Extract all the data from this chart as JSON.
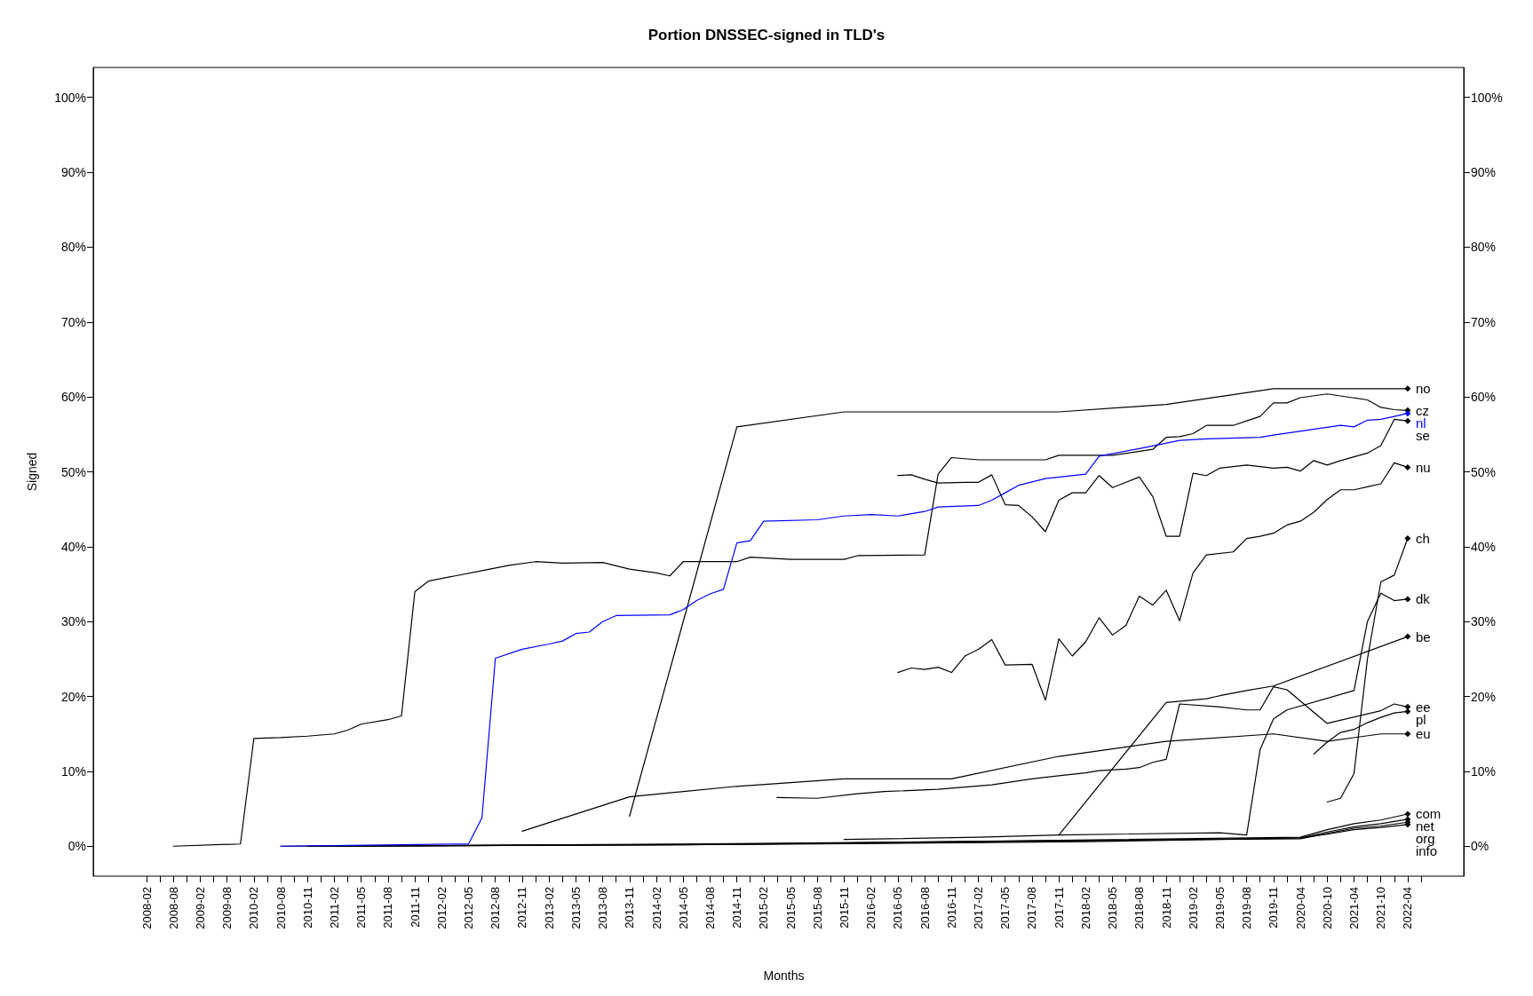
{
  "chart_data": {
    "type": "line",
    "title": "Portion DNSSEC-signed in TLD's",
    "xlabel": "Months",
    "ylabel": "Signed",
    "categories": [
      "2008-02",
      null,
      "2008-08",
      null,
      "2009-02",
      null,
      "2009-08",
      null,
      "2010-02",
      null,
      "2010-08",
      null,
      "2010-11",
      null,
      "2011-02",
      null,
      "2011-05",
      null,
      "2011-08",
      null,
      "2011-11",
      null,
      "2012-02",
      null,
      "2012-05",
      null,
      "2012-08",
      null,
      "2012-11",
      null,
      "2013-02",
      null,
      "2013-05",
      null,
      "2013-08",
      null,
      "2013-11",
      null,
      "2014-02",
      null,
      "2014-05",
      null,
      "2014-08",
      null,
      "2014-11",
      null,
      "2015-02",
      null,
      "2015-05",
      null,
      "2015-08",
      null,
      "2015-11",
      null,
      "2016-02",
      null,
      "2016-05",
      null,
      "2016-08",
      null,
      "2016-11",
      null,
      "2017-02",
      null,
      "2017-05",
      null,
      "2017-08",
      null,
      "2017-11",
      null,
      "2018-02",
      null,
      "2018-05",
      null,
      "2018-08",
      null,
      "2018-11",
      null,
      "2019-02",
      null,
      "2019-05",
      null,
      "2019-08",
      null,
      "2019-11",
      null,
      "2020-04",
      null,
      "2020-10",
      null,
      "2021-04",
      null,
      "2021-10",
      null,
      "2022-04",
      null
    ],
    "ylim": [
      -4,
      104
    ],
    "yticks": [
      {
        "value": 0,
        "label": "0%"
      },
      {
        "value": 10,
        "label": "10%"
      },
      {
        "value": 20,
        "label": "20%"
      },
      {
        "value": 30,
        "label": "30%"
      },
      {
        "value": 40,
        "label": "40%"
      },
      {
        "value": 50,
        "label": "50%"
      },
      {
        "value": 60,
        "label": "60%"
      },
      {
        "value": 70,
        "label": "70%"
      },
      {
        "value": 80,
        "label": "80%"
      },
      {
        "value": 90,
        "label": "90%"
      },
      {
        "value": 100,
        "label": "100%"
      }
    ],
    "y2lim": [
      -4,
      104
    ],
    "y2ticks": [
      {
        "value": 0,
        "label": "0%"
      },
      {
        "value": 10,
        "label": "10%"
      },
      {
        "value": 20,
        "label": "20%"
      },
      {
        "value": 30,
        "label": "30%"
      },
      {
        "value": 40,
        "label": "40%"
      },
      {
        "value": 50,
        "label": "50%"
      },
      {
        "value": 60,
        "label": "60%"
      },
      {
        "value": 70,
        "label": "70%"
      },
      {
        "value": 80,
        "label": "80%"
      },
      {
        "value": 90,
        "label": "90%"
      },
      {
        "value": 100,
        "label": "100%"
      }
    ],
    "grid": false,
    "legend": false,
    "line_style": "solid",
    "series": [
      {
        "name": "no",
        "color": "#000000",
        "values": [
          null,
          null,
          null,
          null,
          null,
          null,
          null,
          null,
          null,
          null,
          null,
          null,
          null,
          null,
          null,
          null,
          null,
          null,
          null,
          null,
          null,
          null,
          null,
          null,
          null,
          null,
          null,
          null,
          null,
          null,
          null,
          null,
          null,
          null,
          null,
          null,
          4.0,
          null,
          null,
          null,
          null,
          null,
          null,
          null,
          56.0,
          null,
          null,
          null,
          null,
          null,
          null,
          null,
          58.0,
          null,
          null,
          null,
          null,
          null,
          null,
          null,
          null,
          null,
          null,
          null,
          null,
          null,
          null,
          null,
          58.0,
          null,
          null,
          null,
          null,
          null,
          null,
          null,
          59.0,
          null,
          null,
          null,
          null,
          null,
          null,
          null,
          61.1,
          null,
          null,
          null,
          null,
          null,
          null,
          null,
          61.1,
          null,
          61.1,
          null
        ]
      },
      {
        "name": "cz",
        "color": "#000000",
        "values": [
          null,
          null,
          0,
          null,
          null,
          null,
          null,
          0.3,
          14.4,
          null,
          14.5,
          null,
          14.7,
          null,
          15.0,
          15.5,
          16.3,
          null,
          16.9,
          17.4,
          34.0,
          35.4,
          null,
          36.1,
          null,
          36.8,
          null,
          37.5,
          null,
          38.0,
          null,
          37.8,
          null,
          null,
          37.9,
          null,
          37.0,
          null,
          36.5,
          36.1,
          38.0,
          null,
          null,
          null,
          38.0,
          38.6,
          null,
          null,
          38.3,
          null,
          null,
          null,
          38.3,
          38.8,
          null,
          null,
          null,
          null,
          38.9,
          49.7,
          51.9,
          null,
          51.6,
          null,
          null,
          null,
          null,
          51.6,
          52.2,
          null,
          null,
          null,
          52.2,
          null,
          null,
          53.0,
          54.6,
          54.7,
          55.1,
          56.2,
          null,
          56.2,
          56.8,
          57.4,
          59.2,
          59.2,
          59.9,
          null,
          60.4,
          null,
          null,
          59.6,
          58.6,
          58.3,
          58.2,
          null
        ]
      },
      {
        "name": "nl",
        "color": "#0000ff",
        "values": [
          null,
          null,
          null,
          null,
          null,
          null,
          null,
          null,
          null,
          null,
          0,
          null,
          null,
          null,
          null,
          null,
          null,
          null,
          null,
          null,
          null,
          null,
          null,
          null,
          0.3,
          3.8,
          25.1,
          null,
          26.3,
          null,
          27.0,
          27.4,
          28.4,
          28.6,
          30.0,
          30.8,
          null,
          null,
          null,
          30.9,
          31.6,
          32.8,
          33.7,
          34.3,
          40.5,
          40.8,
          43.4,
          null,
          null,
          null,
          43.6,
          null,
          44.1,
          null,
          44.3,
          null,
          44.1,
          null,
          44.7,
          45.3,
          null,
          null,
          45.5,
          46.2,
          47.2,
          48.2,
          null,
          49.1,
          null,
          null,
          49.7,
          52.1,
          null,
          null,
          53.1,
          null,
          null,
          54.2,
          null,
          54.4,
          null,
          null,
          null,
          54.6,
          54.9,
          null,
          null,
          null,
          null,
          56.2,
          56.0,
          56.9,
          57.0,
          57.4,
          57.8,
          null
        ]
      },
      {
        "name": "se",
        "color": "#000000",
        "values": [
          null,
          null,
          null,
          null,
          null,
          null,
          null,
          null,
          null,
          null,
          null,
          null,
          null,
          null,
          null,
          null,
          null,
          null,
          null,
          null,
          null,
          null,
          null,
          null,
          null,
          null,
          null,
          null,
          null,
          null,
          null,
          null,
          null,
          null,
          null,
          null,
          null,
          null,
          null,
          null,
          null,
          null,
          null,
          null,
          null,
          null,
          null,
          null,
          null,
          null,
          null,
          null,
          null,
          null,
          null,
          null,
          49.5,
          49.6,
          49.0,
          48.5,
          null,
          48.6,
          48.6,
          49.6,
          45.6,
          45.5,
          44.0,
          42.0,
          46.2,
          47.2,
          47.2,
          49.5,
          47.9,
          null,
          49.3,
          46.7,
          41.4,
          41.4,
          49.8,
          49.5,
          50.5,
          null,
          50.9,
          null,
          50.5,
          50.6,
          50.1,
          51.5,
          50.9,
          51.5,
          52.0,
          52.5,
          53.5,
          57.0,
          56.8,
          null
        ]
      },
      {
        "name": "nu",
        "color": "#000000",
        "values": [
          null,
          null,
          null,
          null,
          null,
          null,
          null,
          null,
          null,
          null,
          null,
          null,
          null,
          null,
          null,
          null,
          null,
          null,
          null,
          null,
          null,
          null,
          null,
          null,
          null,
          null,
          null,
          null,
          null,
          null,
          null,
          null,
          null,
          null,
          null,
          null,
          null,
          null,
          null,
          null,
          null,
          null,
          null,
          null,
          null,
          null,
          null,
          null,
          null,
          null,
          null,
          null,
          null,
          null,
          null,
          null,
          23.2,
          23.8,
          23.6,
          23.9,
          23.2,
          25.4,
          26.3,
          27.6,
          24.2,
          null,
          24.3,
          19.5,
          27.7,
          25.4,
          27.3,
          30.5,
          28.2,
          29.5,
          33.4,
          32.2,
          34.2,
          30.1,
          36.5,
          38.9,
          null,
          39.3,
          41.1,
          41.4,
          41.8,
          42.9,
          43.4,
          44.6,
          46.3,
          47.6,
          47.6,
          48.0,
          48.4,
          51.2,
          50.6,
          null
        ]
      },
      {
        "name": "ch",
        "color": "#000000",
        "values": [
          null,
          null,
          null,
          null,
          null,
          null,
          null,
          null,
          null,
          null,
          null,
          null,
          null,
          null,
          null,
          null,
          null,
          null,
          null,
          null,
          null,
          null,
          null,
          null,
          null,
          null,
          null,
          null,
          null,
          null,
          null,
          null,
          null,
          null,
          null,
          null,
          null,
          null,
          null,
          null,
          null,
          null,
          null,
          null,
          null,
          null,
          null,
          null,
          null,
          null,
          null,
          null,
          null,
          null,
          null,
          null,
          null,
          null,
          null,
          null,
          null,
          null,
          null,
          null,
          null,
          null,
          null,
          null,
          null,
          null,
          null,
          null,
          null,
          null,
          null,
          null,
          null,
          null,
          null,
          null,
          null,
          null,
          null,
          null,
          null,
          null,
          null,
          null,
          5.9,
          6.4,
          9.7,
          25.0,
          35.3,
          36.2,
          41.1,
          null
        ]
      },
      {
        "name": "dk",
        "color": "#000000",
        "values": [
          null,
          null,
          null,
          null,
          null,
          null,
          null,
          null,
          null,
          null,
          null,
          null,
          null,
          null,
          null,
          null,
          null,
          null,
          null,
          null,
          null,
          null,
          null,
          null,
          null,
          null,
          null,
          null,
          null,
          null,
          null,
          null,
          null,
          null,
          null,
          null,
          null,
          null,
          null,
          null,
          null,
          null,
          null,
          null,
          null,
          null,
          null,
          null,
          null,
          null,
          null,
          null,
          0.9,
          null,
          null,
          null,
          null,
          null,
          null,
          null,
          null,
          null,
          1.2,
          null,
          null,
          null,
          null,
          null,
          1.5,
          null,
          null,
          null,
          null,
          null,
          null,
          null,
          null,
          null,
          null,
          null,
          1.8,
          null,
          1.5,
          12.9,
          17.0,
          18.2,
          null,
          null,
          null,
          null,
          20.8,
          30.0,
          33.8,
          32.8,
          33.0,
          null
        ]
      },
      {
        "name": "be",
        "color": "#000000",
        "values": [
          null,
          null,
          null,
          null,
          null,
          null,
          null,
          null,
          null,
          null,
          null,
          null,
          null,
          null,
          null,
          null,
          null,
          null,
          null,
          null,
          null,
          null,
          null,
          null,
          null,
          null,
          null,
          null,
          null,
          null,
          null,
          null,
          null,
          null,
          null,
          null,
          null,
          null,
          null,
          null,
          null,
          null,
          null,
          null,
          null,
          null,
          null,
          null,
          null,
          null,
          null,
          null,
          null,
          null,
          null,
          null,
          null,
          null,
          null,
          null,
          null,
          null,
          null,
          null,
          null,
          null,
          null,
          null,
          1.5,
          null,
          null,
          null,
          null,
          null,
          null,
          null,
          19.2,
          null,
          null,
          19.7,
          20.1,
          null,
          20.8,
          null,
          21.4,
          null,
          null,
          null,
          null,
          null,
          null,
          null,
          null,
          null,
          28.0,
          null
        ]
      },
      {
        "name": "ee",
        "color": "#000000",
        "values": [
          null,
          null,
          null,
          null,
          null,
          null,
          null,
          null,
          null,
          null,
          null,
          null,
          null,
          null,
          null,
          null,
          null,
          null,
          null,
          null,
          null,
          null,
          null,
          null,
          null,
          null,
          null,
          null,
          null,
          null,
          null,
          null,
          null,
          null,
          null,
          null,
          null,
          null,
          null,
          null,
          null,
          null,
          null,
          null,
          null,
          null,
          null,
          6.5,
          null,
          null,
          6.4,
          null,
          null,
          7.0,
          null,
          7.3,
          null,
          null,
          null,
          7.6,
          null,
          null,
          null,
          8.2,
          null,
          null,
          9.0,
          null,
          9.4,
          null,
          9.8,
          10.1,
          null,
          10.3,
          10.5,
          11.2,
          11.6,
          19.0,
          null,
          null,
          18.6,
          null,
          18.2,
          18.2,
          21.3,
          20.9,
          null,
          null,
          16.4,
          null,
          null,
          null,
          18.1,
          19.0,
          18.6,
          null
        ]
      },
      {
        "name": "pl",
        "color": "#000000",
        "values": [
          null,
          null,
          null,
          null,
          null,
          null,
          null,
          null,
          null,
          null,
          null,
          null,
          null,
          null,
          null,
          null,
          null,
          null,
          null,
          null,
          null,
          null,
          null,
          null,
          null,
          null,
          null,
          null,
          null,
          null,
          null,
          null,
          null,
          null,
          null,
          null,
          null,
          null,
          null,
          null,
          null,
          null,
          null,
          null,
          null,
          null,
          null,
          null,
          null,
          null,
          null,
          null,
          null,
          null,
          null,
          null,
          null,
          null,
          null,
          null,
          null,
          null,
          null,
          null,
          null,
          null,
          null,
          null,
          null,
          null,
          null,
          null,
          null,
          null,
          null,
          null,
          null,
          null,
          null,
          null,
          null,
          null,
          null,
          null,
          null,
          null,
          null,
          12.3,
          13.9,
          15.2,
          15.6,
          16.5,
          17.2,
          17.8,
          18.0,
          null
        ]
      },
      {
        "name": "eu",
        "color": "#000000",
        "values": [
          null,
          null,
          null,
          null,
          null,
          null,
          null,
          null,
          null,
          null,
          null,
          null,
          null,
          null,
          null,
          null,
          null,
          null,
          null,
          null,
          null,
          null,
          null,
          null,
          null,
          null,
          null,
          null,
          2.0,
          null,
          null,
          null,
          null,
          null,
          null,
          null,
          6.6,
          null,
          null,
          null,
          null,
          null,
          null,
          null,
          8.0,
          null,
          null,
          null,
          null,
          null,
          null,
          null,
          9.0,
          null,
          null,
          null,
          null,
          null,
          null,
          null,
          9.0,
          null,
          null,
          null,
          null,
          null,
          null,
          null,
          12.0,
          null,
          null,
          null,
          null,
          null,
          null,
          null,
          14.0,
          null,
          null,
          null,
          null,
          null,
          null,
          null,
          15.0,
          null,
          null,
          null,
          14.0,
          null,
          null,
          null,
          15.0,
          null,
          15.0,
          null
        ]
      },
      {
        "name": "com",
        "color": "#000000",
        "values": [
          null,
          null,
          null,
          null,
          null,
          null,
          null,
          null,
          null,
          null,
          null,
          null,
          0,
          null,
          null,
          null,
          null,
          null,
          null,
          null,
          null,
          null,
          null,
          null,
          null,
          null,
          null,
          null,
          null,
          null,
          null,
          null,
          null,
          null,
          null,
          null,
          null,
          null,
          null,
          null,
          0.3,
          null,
          null,
          null,
          null,
          null,
          null,
          null,
          null,
          null,
          null,
          null,
          null,
          null,
          null,
          null,
          null,
          null,
          null,
          null,
          0.6,
          null,
          null,
          null,
          null,
          null,
          null,
          null,
          null,
          null,
          null,
          null,
          null,
          null,
          null,
          null,
          null,
          null,
          null,
          null,
          null,
          null,
          null,
          null,
          null,
          null,
          1.2,
          null,
          2.2,
          null,
          3.0,
          null,
          3.5,
          null,
          4.3,
          null
        ]
      },
      {
        "name": "net",
        "color": "#000000",
        "values": [
          null,
          null,
          null,
          null,
          null,
          null,
          null,
          null,
          null,
          null,
          null,
          null,
          null,
          null,
          0,
          null,
          null,
          null,
          null,
          null,
          null,
          null,
          null,
          null,
          null,
          null,
          null,
          null,
          null,
          null,
          null,
          null,
          null,
          null,
          null,
          null,
          null,
          null,
          null,
          null,
          0.2,
          null,
          null,
          null,
          null,
          null,
          null,
          null,
          null,
          null,
          null,
          null,
          null,
          null,
          null,
          null,
          null,
          null,
          null,
          null,
          0.5,
          null,
          null,
          null,
          null,
          null,
          null,
          null,
          null,
          null,
          null,
          null,
          null,
          null,
          null,
          null,
          null,
          null,
          null,
          null,
          null,
          null,
          null,
          null,
          null,
          null,
          1.1,
          null,
          1.9,
          null,
          2.6,
          null,
          3.0,
          null,
          3.6,
          null
        ]
      },
      {
        "name": "org",
        "color": "#000000",
        "values": [
          null,
          null,
          null,
          null,
          null,
          null,
          null,
          null,
          null,
          null,
          0,
          null,
          null,
          null,
          null,
          null,
          null,
          null,
          null,
          null,
          null,
          null,
          null,
          null,
          null,
          null,
          null,
          null,
          null,
          null,
          null,
          null,
          null,
          null,
          null,
          null,
          null,
          null,
          null,
          null,
          0.2,
          null,
          null,
          null,
          null,
          null,
          null,
          null,
          null,
          null,
          null,
          null,
          null,
          null,
          null,
          null,
          null,
          null,
          null,
          null,
          0.6,
          null,
          null,
          null,
          null,
          null,
          null,
          null,
          null,
          null,
          null,
          null,
          null,
          null,
          null,
          null,
          null,
          null,
          null,
          null,
          null,
          null,
          null,
          null,
          null,
          null,
          1.0,
          null,
          1.7,
          null,
          2.4,
          null,
          2.7,
          null,
          3.2,
          null
        ]
      },
      {
        "name": "info",
        "color": "#000000",
        "values": [
          null,
          null,
          null,
          null,
          null,
          null,
          null,
          null,
          null,
          null,
          null,
          null,
          0,
          null,
          null,
          null,
          null,
          null,
          null,
          null,
          null,
          null,
          null,
          null,
          null,
          null,
          null,
          null,
          null,
          null,
          null,
          null,
          null,
          null,
          null,
          null,
          null,
          null,
          null,
          null,
          null,
          null,
          null,
          null,
          null,
          null,
          null,
          null,
          null,
          null,
          0.3,
          null,
          null,
          null,
          null,
          null,
          null,
          null,
          null,
          null,
          null,
          null,
          null,
          null,
          null,
          null,
          null,
          null,
          null,
          null,
          0.6,
          null,
          null,
          null,
          null,
          null,
          null,
          null,
          null,
          null,
          null,
          null,
          null,
          null,
          null,
          null,
          1.1,
          null,
          1.6,
          null,
          2.2,
          null,
          2.5,
          null,
          2.9,
          null
        ]
      }
    ]
  }
}
